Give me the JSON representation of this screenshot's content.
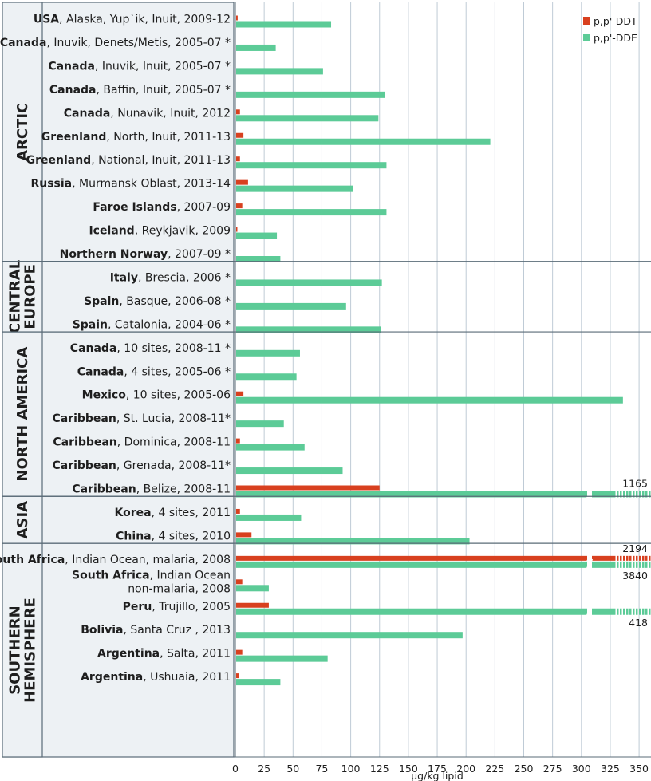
{
  "chart_data": {
    "type": "bar",
    "orientation": "horizontal",
    "title": "",
    "xlabel": "µg/kg lipid",
    "ylabel": "",
    "xlim": [
      0,
      360
    ],
    "xticks": [
      0,
      25,
      50,
      75,
      100,
      125,
      150,
      175,
      200,
      225,
      250,
      275,
      300,
      325,
      350
    ],
    "grid": true,
    "legend_position": "top-right",
    "colors": {
      "ddt": "#d8401f",
      "dde": "#5ccb97",
      "panel": "#edf1f4",
      "panel_border": "#5a6b77",
      "grid": "#bfcbd6"
    },
    "series": [
      {
        "key": "ddt",
        "name": "p,p'-DDT"
      },
      {
        "key": "dde",
        "name": "p,p'-DDE"
      }
    ],
    "regions": [
      {
        "name": "ARCTIC",
        "lines": [
          "ARCTIC"
        ],
        "rows": [
          {
            "bold": "USA",
            "rest": ", Alaska, Yup`ik, Inuit, 2009-12",
            "ddt": 2,
            "dde": 83
          },
          {
            "bold": "Canada",
            "rest": ", Inuvik, Denets/Metis, 2005-07 *",
            "ddt": 0,
            "dde": 35
          },
          {
            "bold": "Canada",
            "rest": ", Inuvik, Inuit, 2005-07 *",
            "ddt": 0,
            "dde": 76
          },
          {
            "bold": "Canada",
            "rest": ", Baffin, Inuit, 2005-07 *",
            "ddt": 0,
            "dde": 130
          },
          {
            "bold": "Canada",
            "rest": ", Nunavik, Inuit, 2012",
            "ddt": 4,
            "dde": 124
          },
          {
            "bold": "Greenland",
            "rest": ", North, Inuit, 2011-13",
            "ddt": 7,
            "dde": 221
          },
          {
            "bold": "Greenland",
            "rest": ", National, Inuit, 2011-13",
            "ddt": 4,
            "dde": 131
          },
          {
            "bold": "Russia",
            "rest": ", Murmansk Oblast, 2013-14",
            "ddt": 11,
            "dde": 102
          },
          {
            "bold": "Faroe Islands",
            "rest": ", 2007-09",
            "ddt": 6,
            "dde": 131
          },
          {
            "bold": "Iceland",
            "rest": ", Reykjavik, 2009",
            "ddt": 1,
            "dde": 36
          },
          {
            "bold": "Northern Norway",
            "rest": ", 2007-09 *",
            "ddt": 0,
            "dde": 39
          }
        ]
      },
      {
        "name": "CENTRAL EUROPE",
        "lines": [
          "CENTRAL",
          "EUROPE"
        ],
        "rows": [
          {
            "bold": "Italy",
            "rest": ", Brescia, 2006 *",
            "ddt": 0,
            "dde": 127
          },
          {
            "bold": "Spain",
            "rest": ", Basque, 2006-08 *",
            "ddt": 0,
            "dde": 96
          },
          {
            "bold": "Spain",
            "rest": ", Catalonia, 2004-06 *",
            "ddt": 0,
            "dde": 126
          }
        ]
      },
      {
        "name": "NORTH AMERICA",
        "lines": [
          "NORTH AMERICA"
        ],
        "rows": [
          {
            "bold": "Canada",
            "rest": ", 10 sites, 2008-11 *",
            "ddt": 0,
            "dde": 56
          },
          {
            "bold": "Canada",
            "rest": ", 4 sites, 2005-06 *",
            "ddt": 0,
            "dde": 53
          },
          {
            "bold": "Mexico",
            "rest": ", 10 sites, 2005-06",
            "ddt": 7,
            "dde": 336
          },
          {
            "bold": "Caribbean",
            "rest": ", St. Lucia, 2008-11*",
            "ddt": 0,
            "dde": 42
          },
          {
            "bold": "Caribbean",
            "rest": ", Dominica, 2008-11",
            "ddt": 4,
            "dde": 60
          },
          {
            "bold": "Caribbean",
            "rest": ", Grenada, 2008-11*",
            "ddt": 0,
            "dde": 93
          },
          {
            "bold": "Caribbean",
            "rest": ", Belize, 2008-11",
            "ddt": 125,
            "dde": 1165,
            "dde_label": "1165",
            "dde_label_pos": "above"
          }
        ]
      },
      {
        "name": "ASIA",
        "lines": [
          "ASIA"
        ],
        "rows": [
          {
            "bold": "Korea",
            "rest": ", 4 sites, 2011",
            "ddt": 4,
            "dde": 57
          },
          {
            "bold": "China",
            "rest": ", 4 sites, 2010",
            "ddt": 14,
            "dde": 203
          }
        ]
      },
      {
        "name": "SOUTHERN HEMISPHERE",
        "lines": [
          "SOUTHERN",
          "HEMISPHERE"
        ],
        "rows": [
          {
            "bold": "South Africa",
            "rest": ", Indian Ocean, malaria, 2008",
            "ddt": 2194,
            "dde": 3840,
            "ddt_label": "2194",
            "dde_label": "3840",
            "dde_label_pos": "below"
          },
          {
            "bold": "South Africa",
            "rest": ", Indian Ocean",
            "rest2": "non-malaria, 2008",
            "ddt": 6,
            "dde": 29
          },
          {
            "bold": "Peru",
            "rest": ", Trujillo, 2005",
            "ddt": 29,
            "dde": 418,
            "dde_label": "418",
            "dde_label_pos": "below"
          },
          {
            "bold": "Bolivia",
            "rest": ", Santa Cruz , 2013",
            "ddt": 0,
            "dde": 197
          },
          {
            "bold": "Argentina",
            "rest": ", Salta, 2011",
            "ddt": 6,
            "dde": 80
          },
          {
            "bold": "Argentina",
            "rest": ", Ushuaia, 2011",
            "ddt": 3,
            "dde": 39
          }
        ]
      }
    ]
  }
}
